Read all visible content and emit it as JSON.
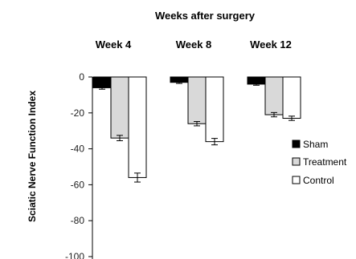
{
  "chart_data": {
    "type": "bar",
    "title": "Weeks after surgery",
    "categories": [
      "Week 4",
      "Week 8",
      "Week 12"
    ],
    "ylabel": "Sciatic Nerve Function Index",
    "xlabel": "",
    "ylim": [
      -100,
      0
    ],
    "yticks": [
      0,
      -20,
      -40,
      -60,
      -80,
      -100
    ],
    "grid": false,
    "legend_position": "right",
    "series": [
      {
        "name": "Sham",
        "values": [
          -6,
          -3,
          -4
        ],
        "errors": [
          0.8,
          0.6,
          0.6
        ],
        "color": "#000000"
      },
      {
        "name": "Treatment",
        "values": [
          -34,
          -26,
          -21
        ],
        "errors": [
          1.5,
          1.2,
          1.2
        ],
        "color": "#d9d9d9"
      },
      {
        "name": "Control",
        "values": [
          -56,
          -36,
          -23
        ],
        "errors": [
          2.5,
          1.8,
          1.2
        ],
        "color": "#ffffff"
      }
    ]
  }
}
